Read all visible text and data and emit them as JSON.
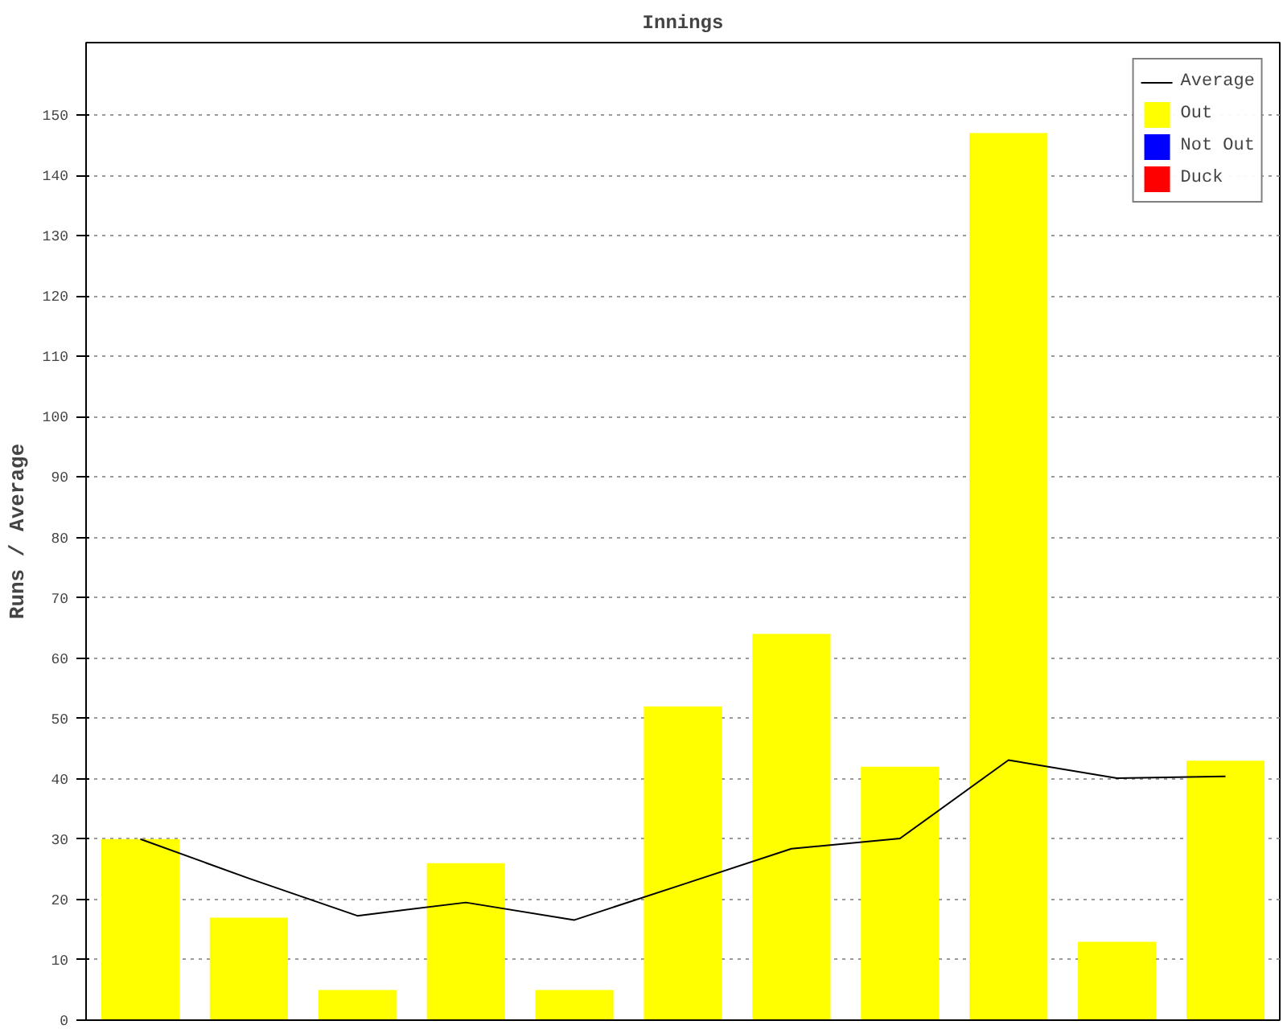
{
  "chart_data": {
    "type": "bar",
    "title": "Innings",
    "ylabel": "Runs / Average",
    "categories": [
      null,
      null,
      null,
      null,
      null,
      null,
      null,
      null,
      null,
      null,
      null
    ],
    "series": [
      {
        "name": "Average",
        "type": "line",
        "color": "#000000",
        "values": [
          30,
          23.5,
          17.3,
          19.5,
          16.6,
          22.5,
          28.4,
          30.1,
          43.1,
          40.1,
          40.4
        ]
      },
      {
        "name": "Out",
        "color": "#ffff00",
        "values": [
          30,
          17,
          5,
          26,
          5,
          52,
          64,
          42,
          147,
          13,
          43
        ]
      },
      {
        "name": "Not Out",
        "color": "#0000ff",
        "values": [
          null,
          null,
          null,
          null,
          null,
          null,
          null,
          null,
          null,
          null,
          null
        ]
      },
      {
        "name": "Duck",
        "color": "#ff0000",
        "values": [
          null,
          null,
          null,
          null,
          null,
          null,
          null,
          null,
          null,
          null,
          null
        ]
      }
    ],
    "ylim": [
      0,
      162
    ],
    "yticks": [
      0,
      10,
      20,
      30,
      40,
      50,
      60,
      70,
      80,
      90,
      100,
      110,
      120,
      130,
      140,
      150
    ],
    "grid": "y",
    "legend": "top right"
  }
}
